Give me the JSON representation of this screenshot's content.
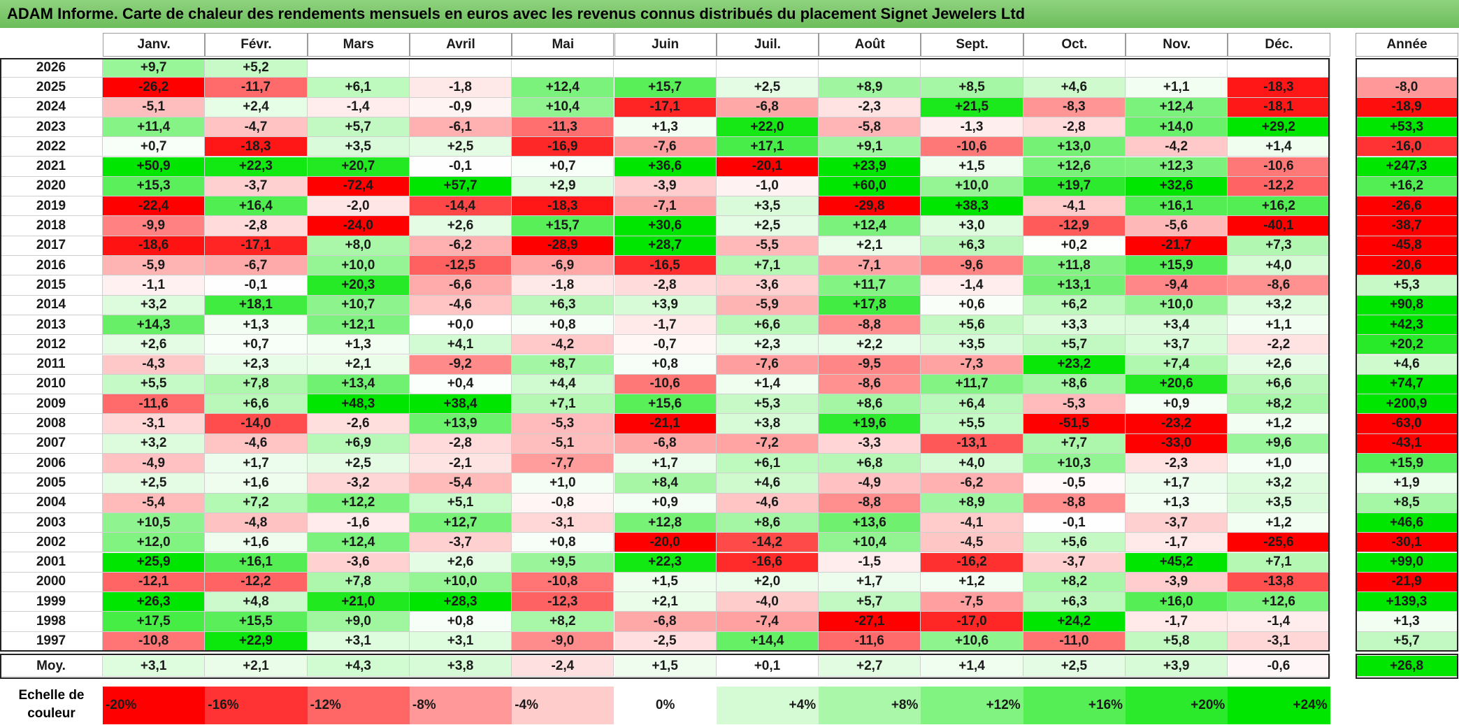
{
  "title": "ADAM Informe. Carte de chaleur des rendements mensuels en euros avec les revenus connus distribués du placement Signet Jewelers Ltd",
  "chart_data": {
    "type": "heatmap",
    "months": [
      "Janv.",
      "Févr.",
      "Mars",
      "Avril",
      "Mai",
      "Juin",
      "Juil.",
      "Août",
      "Sept.",
      "Oct.",
      "Nov.",
      "Déc."
    ],
    "year_header": "Année",
    "rows": [
      {
        "year": "2026",
        "values": [
          "+9,7",
          "+5,2",
          "",
          "",
          "",
          "",
          "",
          "",
          "",
          "",
          "",
          ""
        ],
        "annual": ""
      },
      {
        "year": "2025",
        "values": [
          "-26,2",
          "-11,7",
          "+6,1",
          "-1,8",
          "+12,4",
          "+15,7",
          "+2,5",
          "+8,9",
          "+8,5",
          "+4,6",
          "+1,1",
          "-18,3"
        ],
        "annual": "-8,0"
      },
      {
        "year": "2024",
        "values": [
          "-5,1",
          "+2,4",
          "-1,4",
          "-0,9",
          "+10,4",
          "-17,1",
          "-6,8",
          "-2,3",
          "+21,5",
          "-8,3",
          "+12,4",
          "-18,1"
        ],
        "annual": "-18,9"
      },
      {
        "year": "2023",
        "values": [
          "+11,4",
          "-4,7",
          "+5,7",
          "-6,1",
          "-11,3",
          "+1,3",
          "+22,0",
          "-5,8",
          "-1,3",
          "-2,8",
          "+14,0",
          "+29,2"
        ],
        "annual": "+53,3"
      },
      {
        "year": "2022",
        "values": [
          "+0,7",
          "-18,3",
          "+3,5",
          "+2,5",
          "-16,9",
          "-7,6",
          "+17,1",
          "+9,1",
          "-10,6",
          "+13,0",
          "-4,2",
          "+1,4"
        ],
        "annual": "-16,0"
      },
      {
        "year": "2021",
        "values": [
          "+50,9",
          "+22,3",
          "+20,7",
          "-0,1",
          "+0,7",
          "+36,6",
          "-20,1",
          "+23,9",
          "+1,5",
          "+12,6",
          "+12,3",
          "-10,6"
        ],
        "annual": "+247,3"
      },
      {
        "year": "2020",
        "values": [
          "+15,3",
          "-3,7",
          "-72,4",
          "+57,7",
          "+2,9",
          "-3,9",
          "-1,0",
          "+60,0",
          "+10,0",
          "+19,7",
          "+32,6",
          "-12,2"
        ],
        "annual": "+16,2"
      },
      {
        "year": "2019",
        "values": [
          "-22,4",
          "+16,4",
          "-2,0",
          "-14,4",
          "-18,3",
          "-7,1",
          "+3,5",
          "-29,8",
          "+38,3",
          "-4,1",
          "+16,1",
          "+16,2"
        ],
        "annual": "-26,6"
      },
      {
        "year": "2018",
        "values": [
          "-9,9",
          "-2,8",
          "-24,0",
          "+2,6",
          "+15,7",
          "+30,6",
          "+2,5",
          "+12,4",
          "+3,0",
          "-12,9",
          "-5,6",
          "-40,1"
        ],
        "annual": "-38,7"
      },
      {
        "year": "2017",
        "values": [
          "-18,6",
          "-17,1",
          "+8,0",
          "-6,2",
          "-28,9",
          "+28,7",
          "-5,5",
          "+2,1",
          "+6,3",
          "+0,2",
          "-21,7",
          "+7,3"
        ],
        "annual": "-45,8"
      },
      {
        "year": "2016",
        "values": [
          "-5,9",
          "-6,7",
          "+10,0",
          "-12,5",
          "-6,9",
          "-16,5",
          "+7,1",
          "-7,1",
          "-9,6",
          "+11,8",
          "+15,9",
          "+4,0"
        ],
        "annual": "-20,6"
      },
      {
        "year": "2015",
        "values": [
          "-1,1",
          "-0,1",
          "+20,3",
          "-6,6",
          "-1,8",
          "-2,8",
          "-3,6",
          "+11,7",
          "-1,4",
          "+13,1",
          "-9,4",
          "-8,6"
        ],
        "annual": "+5,3"
      },
      {
        "year": "2014",
        "values": [
          "+3,2",
          "+18,1",
          "+10,7",
          "-4,6",
          "+6,3",
          "+3,9",
          "-5,9",
          "+17,8",
          "+0,6",
          "+6,2",
          "+10,0",
          "+3,2"
        ],
        "annual": "+90,8"
      },
      {
        "year": "2013",
        "values": [
          "+14,3",
          "+1,3",
          "+12,1",
          "+0,0",
          "+0,8",
          "-1,7",
          "+6,6",
          "-8,8",
          "+5,6",
          "+3,3",
          "+3,4",
          "+1,1"
        ],
        "annual": "+42,3"
      },
      {
        "year": "2012",
        "values": [
          "+2,6",
          "+0,7",
          "+1,3",
          "+4,1",
          "-4,2",
          "-0,7",
          "+2,3",
          "+2,2",
          "+3,5",
          "+5,7",
          "+3,7",
          "-2,2"
        ],
        "annual": "+20,2"
      },
      {
        "year": "2011",
        "values": [
          "-4,3",
          "+2,3",
          "+2,1",
          "-9,2",
          "+8,7",
          "+0,8",
          "-7,6",
          "-9,5",
          "-7,3",
          "+23,2",
          "+7,4",
          "+2,6"
        ],
        "annual": "+4,6"
      },
      {
        "year": "2010",
        "values": [
          "+5,5",
          "+7,8",
          "+13,4",
          "+0,4",
          "+4,4",
          "-10,6",
          "+1,4",
          "-8,6",
          "+11,7",
          "+8,6",
          "+20,6",
          "+6,6"
        ],
        "annual": "+74,7"
      },
      {
        "year": "2009",
        "values": [
          "-11,6",
          "+6,6",
          "+48,3",
          "+38,4",
          "+7,1",
          "+15,6",
          "+5,3",
          "+8,6",
          "+6,4",
          "-5,3",
          "+0,9",
          "+8,2"
        ],
        "annual": "+200,9"
      },
      {
        "year": "2008",
        "values": [
          "-3,1",
          "-14,0",
          "-2,6",
          "+13,9",
          "-5,3",
          "-21,1",
          "+3,8",
          "+19,6",
          "+5,5",
          "-51,5",
          "-23,2",
          "+1,2"
        ],
        "annual": "-63,0"
      },
      {
        "year": "2007",
        "values": [
          "+3,2",
          "-4,6",
          "+6,9",
          "-2,8",
          "-5,1",
          "-6,8",
          "-7,2",
          "-3,3",
          "-13,1",
          "+7,7",
          "-33,0",
          "+9,6"
        ],
        "annual": "-43,1"
      },
      {
        "year": "2006",
        "values": [
          "-4,9",
          "+1,7",
          "+2,5",
          "-2,1",
          "-7,7",
          "+1,7",
          "+6,1",
          "+6,8",
          "+4,0",
          "+10,3",
          "-2,3",
          "+1,0"
        ],
        "annual": "+15,9"
      },
      {
        "year": "2005",
        "values": [
          "+2,5",
          "+1,6",
          "-3,2",
          "-5,4",
          "+1,0",
          "+8,4",
          "+4,6",
          "-4,9",
          "-6,2",
          "-0,5",
          "+1,7",
          "+3,2"
        ],
        "annual": "+1,9"
      },
      {
        "year": "2004",
        "values": [
          "-5,4",
          "+7,2",
          "+12,2",
          "+5,1",
          "-0,8",
          "+0,9",
          "-4,6",
          "-8,8",
          "+8,9",
          "-8,8",
          "+1,3",
          "+3,5"
        ],
        "annual": "+8,5"
      },
      {
        "year": "2003",
        "values": [
          "+10,5",
          "-4,8",
          "-1,6",
          "+12,7",
          "-3,1",
          "+12,8",
          "+8,6",
          "+13,6",
          "-4,1",
          "-0,1",
          "-3,7",
          "+1,2"
        ],
        "annual": "+46,6"
      },
      {
        "year": "2002",
        "values": [
          "+12,0",
          "+1,6",
          "+12,4",
          "-3,7",
          "+0,8",
          "-20,0",
          "-14,2",
          "+10,4",
          "-4,5",
          "+5,6",
          "-1,7",
          "-25,6"
        ],
        "annual": "-30,1"
      },
      {
        "year": "2001",
        "values": [
          "+25,9",
          "+16,1",
          "-3,6",
          "+2,6",
          "+9,5",
          "+22,3",
          "-16,6",
          "-1,5",
          "-16,2",
          "-3,7",
          "+45,2",
          "+7,1"
        ],
        "annual": "+99,0"
      },
      {
        "year": "2000",
        "values": [
          "-12,1",
          "-12,2",
          "+7,8",
          "+10,0",
          "-10,8",
          "+1,5",
          "+2,0",
          "+1,7",
          "+1,2",
          "+8,2",
          "-3,9",
          "-13,8"
        ],
        "annual": "-21,9"
      },
      {
        "year": "1999",
        "values": [
          "+26,3",
          "+4,8",
          "+21,0",
          "+28,3",
          "-12,3",
          "+2,1",
          "-4,0",
          "+5,7",
          "-7,5",
          "+6,3",
          "+16,0",
          "+12,6"
        ],
        "annual": "+139,3"
      },
      {
        "year": "1998",
        "values": [
          "+17,5",
          "+15,5",
          "+9,0",
          "+0,8",
          "+8,2",
          "-6,8",
          "-7,4",
          "-27,1",
          "-17,0",
          "+24,2",
          "-1,7",
          "-1,4"
        ],
        "annual": "+1,3"
      },
      {
        "year": "1997",
        "values": [
          "-10,8",
          "+22,9",
          "+3,1",
          "+3,1",
          "-9,0",
          "-2,5",
          "+14,4",
          "-11,6",
          "+10,6",
          "-11,0",
          "+5,8",
          "-3,1"
        ],
        "annual": "+5,7"
      }
    ],
    "average": {
      "label": "Moy.",
      "values": [
        "+3,1",
        "+2,1",
        "+4,3",
        "+3,8",
        "-2,4",
        "+1,5",
        "+0,1",
        "+2,7",
        "+1,4",
        "+2,5",
        "+3,9",
        "-0,6"
      ],
      "annual": "+26,8"
    },
    "scale": {
      "label": "Echelle de couleur",
      "stops": [
        {
          "label": "-20%",
          "value": -20
        },
        {
          "label": "-16%",
          "value": -16
        },
        {
          "label": "-12%",
          "value": -12
        },
        {
          "label": "-8%",
          "value": -8
        },
        {
          "label": "-4%",
          "value": -4
        },
        {
          "label": "0%",
          "value": 0
        },
        {
          "label": "+4%",
          "value": 4
        },
        {
          "label": "+8%",
          "value": 8
        },
        {
          "label": "+12%",
          "value": 12
        },
        {
          "label": "+16%",
          "value": 16
        },
        {
          "label": "+20%",
          "value": 20
        },
        {
          "label": "+24%",
          "value": 24
        }
      ]
    },
    "colors": {
      "negative": "#ff0000",
      "neutral": "#ffffff",
      "positive": "#00e600"
    }
  }
}
